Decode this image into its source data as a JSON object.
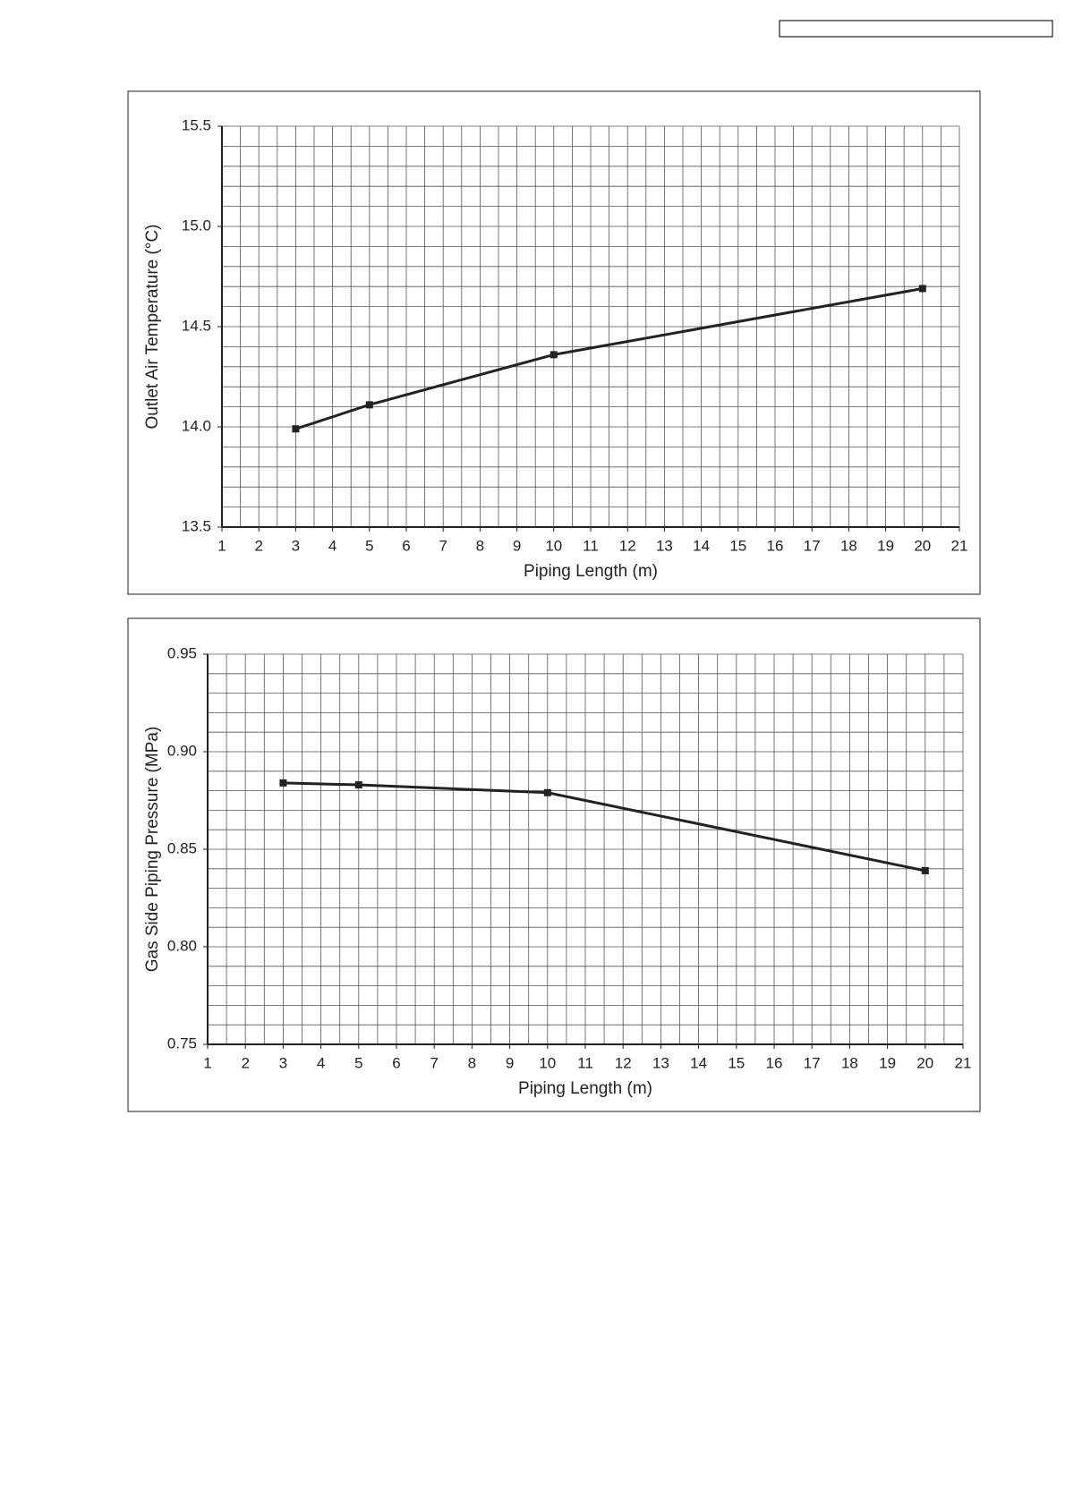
{
  "chart_data": [
    {
      "type": "line",
      "x_label": "Piping Length (m)",
      "y_label": "Outlet Air Temperature (°C)",
      "x": [
        3,
        5,
        10,
        20
      ],
      "values": [
        13.99,
        14.11,
        14.36,
        14.69
      ],
      "color": "#222222",
      "xlim": [
        1,
        21
      ],
      "xticks": [
        1,
        2,
        3,
        4,
        5,
        6,
        7,
        8,
        9,
        10,
        11,
        12,
        13,
        14,
        15,
        16,
        17,
        18,
        19,
        20,
        21
      ],
      "ylim": [
        13.5,
        15.5
      ],
      "yticks": [
        13.5,
        {
          "value": 14,
          "label": "14.0"
        },
        14.5,
        {
          "value": 15,
          "label": "15.0"
        },
        15.5
      ],
      "grid": true
    },
    {
      "type": "line",
      "x_label": "Piping Length (m)",
      "y_label": "Gas Side Piping Pressure (MPa)",
      "x": [
        3,
        5,
        10,
        20
      ],
      "values": [
        0.884,
        0.883,
        0.879,
        0.839
      ],
      "color": "#222222",
      "xlim": [
        1,
        21
      ],
      "xticks": [
        1,
        2,
        3,
        4,
        5,
        6,
        7,
        8,
        9,
        10,
        11,
        12,
        13,
        14,
        15,
        16,
        17,
        18,
        19,
        20,
        21
      ],
      "ylim": [
        0.75,
        0.95
      ],
      "yticks": [
        0.75,
        {
          "value": 0.8,
          "label": "0.80"
        },
        0.85,
        {
          "value": 0.9,
          "label": "0.90"
        },
        0.95
      ],
      "grid": true
    }
  ]
}
